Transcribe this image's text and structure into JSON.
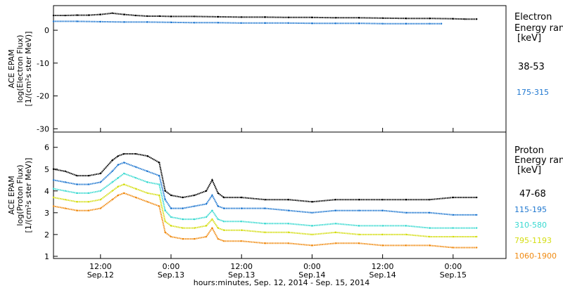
{
  "figure": {
    "xaxis_title": "hours:minutes, Sep. 12, 2014 - Sep. 15, 2014",
    "xtick_labels": [
      {
        "time": "12:00",
        "date": "Sep.12",
        "hours": 12
      },
      {
        "time": "0:00",
        "date": "Sep.13",
        "hours": 24
      },
      {
        "time": "12:00",
        "date": "Sep.13",
        "hours": 36
      },
      {
        "time": "0:00",
        "date": "Sep.14",
        "hours": 48
      },
      {
        "time": "12:00",
        "date": "Sep.14",
        "hours": 60
      },
      {
        "time": "0:00",
        "date": "Sep.15",
        "hours": 72
      }
    ]
  },
  "chart_data": [
    {
      "type": "scatter",
      "panel": "electron",
      "ylabel_line1": "ACE EPAM",
      "ylabel_line2": "log(Electron Flux)",
      "ylabel_line3": "[1/(cm²s ster MeV)]",
      "xlim": [
        4,
        81
      ],
      "ylim": [
        -31,
        7.5
      ],
      "yticks": [
        0,
        -10,
        -20,
        -30
      ],
      "legend_title_1": "Electron",
      "legend_title_2": "Energy range",
      "legend_unit": "[keV]",
      "series": [
        {
          "name": "38-53",
          "color": "#000000",
          "x": [
            4,
            6,
            8,
            10,
            12,
            14,
            16,
            18,
            20,
            22,
            24,
            28,
            32,
            36,
            40,
            44,
            48,
            52,
            56,
            60,
            64,
            68,
            72,
            74,
            76
          ],
          "y": [
            4.5,
            4.5,
            4.6,
            4.6,
            4.8,
            5.2,
            4.8,
            4.5,
            4.3,
            4.3,
            4.2,
            4.2,
            4.1,
            4.0,
            4.0,
            3.9,
            3.9,
            3.8,
            3.8,
            3.7,
            3.6,
            3.6,
            3.5,
            3.4,
            3.4
          ]
        },
        {
          "name": "175-315",
          "color": "#1f77d0",
          "x": [
            4,
            8,
            12,
            16,
            20,
            24,
            28,
            32,
            36,
            40,
            44,
            48,
            52,
            56,
            60,
            64,
            68,
            70
          ],
          "y": [
            2.7,
            2.7,
            2.6,
            2.5,
            2.5,
            2.4,
            2.3,
            2.3,
            2.2,
            2.2,
            2.2,
            2.1,
            2.1,
            2.1,
            2.0,
            2.0,
            2.0,
            2.0
          ]
        }
      ]
    },
    {
      "type": "scatter",
      "panel": "proton",
      "ylabel_line1": "ACE EPAM",
      "ylabel_line2": "log(Proton Flux)",
      "ylabel_line3": "[1/(cm²s ster MeV)]",
      "xlim": [
        4,
        81
      ],
      "ylim": [
        0.9,
        6.7
      ],
      "yticks": [
        1,
        2,
        3,
        4,
        5,
        6
      ],
      "legend_title_1": "Proton",
      "legend_title_2": "Energy range",
      "legend_unit": "[keV]",
      "series": [
        {
          "name": "47-68",
          "color": "#000000",
          "x": [
            4,
            6,
            8,
            10,
            12,
            14,
            15,
            16,
            18,
            20,
            22,
            23,
            24,
            26,
            28,
            30,
            31,
            32,
            33,
            36,
            40,
            44,
            48,
            52,
            56,
            60,
            64,
            68,
            72,
            76
          ],
          "y": [
            5.0,
            4.9,
            4.7,
            4.7,
            4.8,
            5.4,
            5.6,
            5.7,
            5.7,
            5.6,
            5.3,
            4.0,
            3.8,
            3.7,
            3.8,
            4.0,
            4.5,
            3.9,
            3.7,
            3.7,
            3.6,
            3.6,
            3.5,
            3.6,
            3.6,
            3.6,
            3.6,
            3.6,
            3.7,
            3.7
          ]
        },
        {
          "name": "115-195",
          "color": "#1f77d0",
          "x": [
            4,
            6,
            8,
            10,
            12,
            14,
            15,
            16,
            18,
            20,
            22,
            23,
            24,
            26,
            28,
            30,
            31,
            32,
            33,
            36,
            40,
            44,
            48,
            52,
            56,
            60,
            64,
            68,
            72,
            76
          ],
          "y": [
            4.5,
            4.4,
            4.3,
            4.3,
            4.4,
            4.9,
            5.2,
            5.3,
            5.1,
            4.9,
            4.7,
            3.6,
            3.2,
            3.2,
            3.3,
            3.4,
            3.8,
            3.3,
            3.2,
            3.2,
            3.2,
            3.1,
            3.0,
            3.1,
            3.1,
            3.1,
            3.0,
            3.0,
            2.9,
            2.9
          ]
        },
        {
          "name": "310-580",
          "color": "#38d9d0",
          "x": [
            4,
            6,
            8,
            10,
            12,
            14,
            15,
            16,
            18,
            20,
            22,
            23,
            24,
            26,
            28,
            30,
            31,
            32,
            33,
            36,
            40,
            44,
            48,
            52,
            56,
            60,
            64,
            68,
            72,
            76
          ],
          "y": [
            4.1,
            4.0,
            3.9,
            3.9,
            4.0,
            4.4,
            4.6,
            4.8,
            4.6,
            4.4,
            4.3,
            3.1,
            2.8,
            2.7,
            2.7,
            2.8,
            3.1,
            2.7,
            2.6,
            2.6,
            2.5,
            2.5,
            2.4,
            2.5,
            2.4,
            2.4,
            2.4,
            2.3,
            2.3,
            2.3
          ]
        },
        {
          "name": "795-1193",
          "color": "#d4dd10",
          "x": [
            4,
            6,
            8,
            10,
            12,
            14,
            15,
            16,
            18,
            20,
            22,
            23,
            24,
            26,
            28,
            30,
            31,
            32,
            33,
            36,
            40,
            44,
            48,
            52,
            56,
            60,
            64,
            68,
            72,
            76
          ],
          "y": [
            3.7,
            3.6,
            3.5,
            3.5,
            3.6,
            4.0,
            4.2,
            4.3,
            4.1,
            3.9,
            3.8,
            2.6,
            2.4,
            2.3,
            2.3,
            2.4,
            2.7,
            2.3,
            2.2,
            2.2,
            2.1,
            2.1,
            2.0,
            2.1,
            2.0,
            2.0,
            2.0,
            1.9,
            1.9,
            1.9
          ]
        },
        {
          "name": "1060-1900",
          "color": "#f08a10",
          "x": [
            4,
            6,
            8,
            10,
            12,
            14,
            15,
            16,
            18,
            20,
            22,
            23,
            24,
            26,
            28,
            30,
            31,
            32,
            33,
            36,
            40,
            44,
            48,
            52,
            56,
            60,
            64,
            68,
            72,
            76
          ],
          "y": [
            3.3,
            3.2,
            3.1,
            3.1,
            3.2,
            3.6,
            3.8,
            3.9,
            3.7,
            3.5,
            3.3,
            2.1,
            1.9,
            1.8,
            1.8,
            1.9,
            2.3,
            1.8,
            1.7,
            1.7,
            1.6,
            1.6,
            1.5,
            1.6,
            1.6,
            1.5,
            1.5,
            1.5,
            1.4,
            1.4
          ]
        }
      ]
    }
  ]
}
